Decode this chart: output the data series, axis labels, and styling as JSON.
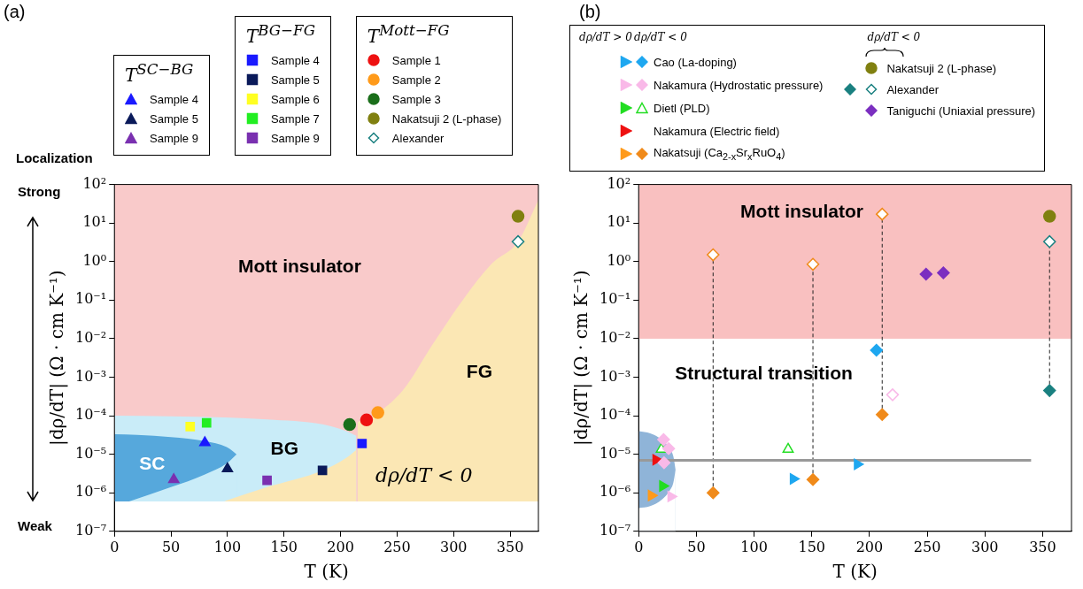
{
  "chart_data": [
    {
      "type": "scatter",
      "title": "(a)",
      "xlabel": "T (K)",
      "ylabel": "|dρ/dT| (Ω · cm K⁻¹)",
      "legend": "top",
      "log": "y",
      "xlim": [
        0,
        375
      ],
      "xticks": [
        0,
        50,
        100,
        150,
        200,
        250,
        300,
        350
      ],
      "ylim": [
        1e-07,
        100
      ],
      "yticks": [
        {
          "value": 100,
          "label": "10²"
        },
        {
          "value": 10,
          "label": "10¹"
        },
        {
          "value": 1,
          "label": "10⁰"
        },
        {
          "value": 0.1,
          "label": "10⁻¹"
        },
        {
          "value": 0.01,
          "label": "10⁻²"
        },
        {
          "value": 0.001,
          "label": "10⁻³"
        },
        {
          "value": 0.0001,
          "label": "10⁻⁴"
        },
        {
          "value": 1e-05,
          "label": "10⁻⁵"
        },
        {
          "value": 1e-06,
          "label": "10⁻⁶"
        },
        {
          "value": 1e-07,
          "label": "10⁻⁷"
        }
      ],
      "legend_title": [
        "T$^{SC−BG}$",
        "T$^{BG−FG}$",
        "T$^{Mott−FG}$"
      ],
      "annotations": [
        "Localization",
        "Strong",
        "Weak",
        "Mott insulator",
        "FG",
        "BG",
        "SC",
        "dρ/dT < 0"
      ],
      "bands": [
        {
          "axis": "y",
          "from": 6e-07,
          "to": 100,
          "color": "#f9caca"
        }
      ],
      "series": [
        {
          "type": "area",
          "color": "#c9ecf8",
          "x": [
            0,
            50,
            97,
            135,
            184,
            205,
            214
          ],
          "values": [
            0.0001,
            9.7e-05,
            9e-05,
            8e-05,
            6e-05,
            4e-05,
            3e-05
          ]
        },
        {
          "type": "area",
          "color": "#56a8dc",
          "x": [
            0,
            20,
            50,
            80,
            100,
            108
          ],
          "values": [
            3.3e-05,
            3.2e-05,
            2.8e-05,
            2.2e-05,
            1.5e-05,
            1e-05
          ]
        },
        {
          "type": "area",
          "color": "#c9ecf8",
          "x": [
            13,
            50,
            80,
            100,
            108
          ],
          "values": [
            6e-07,
            1.4e-06,
            3e-06,
            6e-06,
            1e-05
          ]
        },
        {
          "type": "area",
          "color": "#fbe7b4",
          "x": [
            97,
            135,
            184,
            205,
            214
          ],
          "values": [
            6e-07,
            1.4e-06,
            3.8e-06,
            8e-06,
            1.3e-05
          ]
        },
        {
          "type": "area",
          "color": "#fbe7b4",
          "x": [
            215,
            228,
            255,
            281,
            310,
            334,
            357,
            375
          ],
          "values": [
            6.8e-05,
            9.6e-05,
            0.00045,
            0.0068,
            0.12,
            0.9,
            3.3,
            40
          ]
        },
        {
          "name": "Sample 4",
          "marker": "triangle",
          "color": "#1a1aff",
          "x": [
            80
          ],
          "values": [
            2e-05
          ]
        },
        {
          "name": "Sample 5",
          "marker": "triangle",
          "color": "#0a1a5a",
          "x": [
            100
          ],
          "values": [
            4.2e-06
          ]
        },
        {
          "name": "Sample 9",
          "marker": "triangle",
          "color": "#7a30b0",
          "x": [
            52.5
          ],
          "values": [
            2.2e-06
          ]
        },
        {
          "name": "Sample 4",
          "marker": "square",
          "color": "#1a1aff",
          "x": [
            219
          ],
          "values": [
            1.9e-05
          ]
        },
        {
          "name": "Sample 5",
          "marker": "square",
          "color": "#0a1a5a",
          "x": [
            184
          ],
          "values": [
            3.8e-06
          ]
        },
        {
          "name": "Sample 6",
          "marker": "square",
          "color": "#ffff22",
          "x": [
            67
          ],
          "values": [
            5.2e-05
          ]
        },
        {
          "name": "Sample 7",
          "marker": "square",
          "color": "#22ee22",
          "x": [
            81.5
          ],
          "values": [
            6.5e-05
          ]
        },
        {
          "name": "Sample 9",
          "marker": "square",
          "color": "#7a30b0",
          "x": [
            135
          ],
          "values": [
            2.1e-06
          ]
        },
        {
          "name": "Sample 1",
          "marker": "circle",
          "color": "#ee1111",
          "x": [
            223
          ],
          "values": [
            7.8e-05
          ]
        },
        {
          "name": "Sample 2",
          "marker": "circle",
          "color": "#ff9a1a",
          "x": [
            233
          ],
          "values": [
            0.00012
          ]
        },
        {
          "name": "Sample 3",
          "marker": "circle",
          "color": "#1a6e1a",
          "x": [
            208
          ],
          "values": [
            5.9e-05
          ]
        },
        {
          "name": "Nakatsuji 2 (L-phase)",
          "marker": "circle",
          "color": "#808010",
          "x": [
            357
          ],
          "values": [
            15
          ]
        },
        {
          "name": "Alexander",
          "marker": "diamond-open",
          "color": "#1a8080",
          "x": [
            357
          ],
          "values": [
            3.3
          ]
        }
      ]
    },
    {
      "type": "scatter",
      "title": "(b)",
      "xlabel": "T (K)",
      "ylabel": "|dρ/dT| (Ω · cm K⁻¹)",
      "legend": "top",
      "log": "y",
      "xlim": [
        0,
        375
      ],
      "xticks": [
        0,
        50,
        100,
        150,
        200,
        250,
        300,
        350
      ],
      "ylim": [
        1e-07,
        100
      ],
      "yticks": [
        {
          "value": 100,
          "label": "10²"
        },
        {
          "value": 10,
          "label": "10¹"
        },
        {
          "value": 1,
          "label": "10⁰"
        },
        {
          "value": 0.1,
          "label": "10⁻¹"
        },
        {
          "value": 0.01,
          "label": "10⁻²"
        },
        {
          "value": 0.001,
          "label": "10⁻³"
        },
        {
          "value": 0.0001,
          "label": "10⁻⁴"
        },
        {
          "value": 1e-05,
          "label": "10⁻⁵"
        },
        {
          "value": 1e-06,
          "label": "10⁻⁶"
        },
        {
          "value": 1e-07,
          "label": "10⁻⁷"
        }
      ],
      "legend_title": [
        "dρ/dT > 0",
        "dρ/dT < 0",
        "dρ/dT < 0"
      ],
      "bands": [
        {
          "axis": "y",
          "from": 0.01,
          "to": 100,
          "color": "#f9c0c0"
        }
      ],
      "annotations": [
        "Mott insulator",
        "Structural transition"
      ],
      "series": [
        {
          "type": "area",
          "color": "#8fb4d8",
          "x": [
            0,
            10,
            20,
            27,
            30,
            32
          ],
          "values": [
            4e-05,
            3.5e-05,
            2.4e-05,
            1.4e-05,
            8.9e-06,
            4e-06
          ]
        },
        {
          "type": "area",
          "color": "#ffffff",
          "x": [
            0,
            10,
            20,
            27,
            30,
            32
          ],
          "values": [
            4e-07,
            4.5e-07,
            6.6e-07,
            1.15e-06,
            1.8e-06,
            4e-06
          ]
        },
        {
          "type": "line",
          "color": "#999999",
          "x": [
            0,
            340
          ],
          "values": [
            7e-06,
            7e-06
          ]
        },
        {
          "type": "line",
          "line_style": "dashed",
          "color": "#222222",
          "x": [
            64.5,
            64.5
          ],
          "values": [
            1e-06,
            1.5
          ]
        },
        {
          "type": "line",
          "line_style": "dashed",
          "color": "#222222",
          "x": [
            151,
            151
          ],
          "values": [
            2.2e-06,
            0.85
          ]
        },
        {
          "type": "line",
          "line_style": "dashed",
          "color": "#222222",
          "x": [
            211,
            211
          ],
          "values": [
            0.000107,
            17
          ]
        },
        {
          "type": "line",
          "line_style": "dashed",
          "color": "#222222",
          "x": [
            356,
            356
          ],
          "values": [
            0.00045,
            3.3
          ]
        },
        {
          "name": "Cao (La-doping)",
          "marker": "triangle-right",
          "color": "#1ea7f0",
          "x": [
            134,
            189.5
          ],
          "values": [
            2.3e-06,
            5.5e-06
          ]
        },
        {
          "marker": "diamond",
          "color": "#1ea7f0",
          "x": [
            206
          ],
          "values": [
            0.005
          ]
        },
        {
          "name": "Nakamura (Hydrostatic pressure)",
          "marker": "triangle-right",
          "color": "#f9b9e8",
          "x": [
            28
          ],
          "values": [
            8e-07
          ]
        },
        {
          "marker": "diamond",
          "color": "#f9b9e8",
          "x": [
            21.6,
            26,
            22
          ],
          "values": [
            2.4e-05,
            1.4e-05,
            6e-06
          ]
        },
        {
          "name": "Dietl (PLD)",
          "marker": "triangle-right",
          "color": "#22dd22",
          "x": [
            20.8
          ],
          "values": [
            1.5e-06
          ]
        },
        {
          "marker": "triangle-open",
          "color": "#22dd22",
          "x": [
            19.7,
            129.5
          ],
          "values": [
            1.35e-05,
            1.35e-05
          ]
        },
        {
          "name": "Nakamura (Electric field)",
          "marker": "triangle-right",
          "color": "#ee1111",
          "x": [
            15
          ],
          "values": [
            7.2e-06
          ]
        },
        {
          "name": "Nakatsuji (Ca$_{2-x}$Sr$_{x}$RuO$_{4}$)",
          "marker": "triangle-right",
          "color": "#ff9a1a",
          "x": [
            11
          ],
          "values": [
            8.5e-07
          ]
        },
        {
          "marker": "diamond",
          "color": "#f08a1a",
          "x": [
            64.5,
            151,
            211
          ],
          "values": [
            1e-06,
            2.2e-06,
            0.000107
          ]
        },
        {
          "marker": "diamond-open",
          "color": "#f08a1a",
          "x": [
            64.5,
            151,
            211
          ],
          "values": [
            1.5,
            0.85,
            17
          ]
        },
        {
          "marker": "diamond-open",
          "color": "#f9b9e8",
          "x": [
            220
          ],
          "values": [
            0.00035
          ]
        },
        {
          "name": "Nakatsuji 2 (L-phase)",
          "marker": "circle",
          "color": "#808010",
          "x": [
            356
          ],
          "values": [
            15
          ]
        },
        {
          "name": "Alexander",
          "marker": "diamond-open",
          "color": "#1a8080",
          "x": [
            356
          ],
          "values": [
            3.3
          ]
        },
        {
          "marker": "diamond",
          "color": "#1a8080",
          "x": [
            356
          ],
          "values": [
            0.00045
          ]
        },
        {
          "name": "Taniguchi (Uniaxial pressure)",
          "marker": "diamond",
          "color": "#7b2fc0",
          "x": [
            249,
            264
          ],
          "values": [
            0.47,
            0.51
          ]
        }
      ]
    }
  ]
}
